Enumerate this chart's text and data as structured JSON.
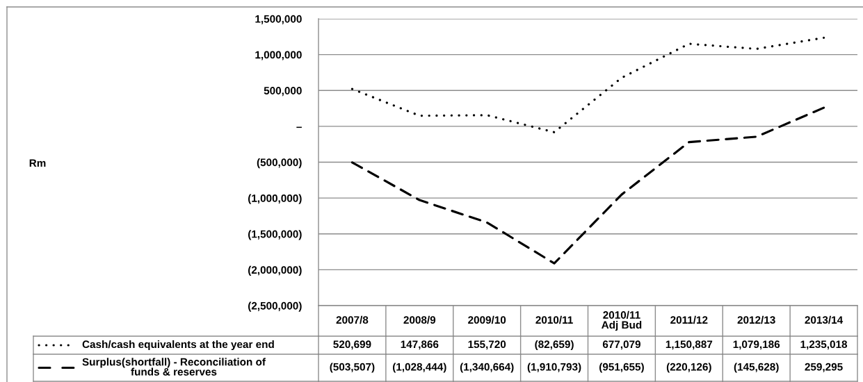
{
  "chart_data": {
    "type": "line",
    "categories": [
      "2007/8",
      "2008/9",
      "2009/10",
      "2010/11",
      "2010/11\nAdj Bud",
      "2011/12",
      "2012/13",
      "2013/14"
    ],
    "series": [
      {
        "name": "Cash/cash equivalents at the year end",
        "color": "#000000",
        "line_style": "dotted",
        "values": [
          520699,
          147866,
          155720,
          -82659,
          677079,
          1150887,
          1079186,
          1235018
        ],
        "value_labels": [
          "520,699",
          "147,866",
          "155,720",
          "(82,659)",
          "677,079",
          "1,150,887",
          "1,079,186",
          "1,235,018"
        ]
      },
      {
        "name": "Surplus(shortfall) - Reconciliation of\nfunds & reserves",
        "color": "#000000",
        "line_style": "dashed",
        "values": [
          -503507,
          -1028444,
          -1340664,
          -1910793,
          -951655,
          -220126,
          -145628,
          259295
        ],
        "value_labels": [
          "(503,507)",
          "(1,028,444)",
          "(1,340,664)",
          "(1,910,793)",
          "(951,655)",
          "(220,126)",
          "(145,628)",
          "259,295"
        ]
      }
    ],
    "ylim": [
      -2500000,
      1500000
    ],
    "yticks": [
      {
        "value": 1500000,
        "label": "1,500,000"
      },
      {
        "value": 1000000,
        "label": "1,000,000"
      },
      {
        "value": 500000,
        "label": "500,000"
      },
      {
        "value": 0,
        "label": "–"
      },
      {
        "value": -500000,
        "label": "(500,000)"
      },
      {
        "value": -1000000,
        "label": "(1,000,000)"
      },
      {
        "value": -1500000,
        "label": "(1,500,000)"
      },
      {
        "value": -2000000,
        "label": "(2,000,000)"
      },
      {
        "value": -2500000,
        "label": "(2,500,000)"
      }
    ],
    "annotations": [
      "Rm"
    ],
    "grid": "y",
    "legend": "bottom left"
  }
}
